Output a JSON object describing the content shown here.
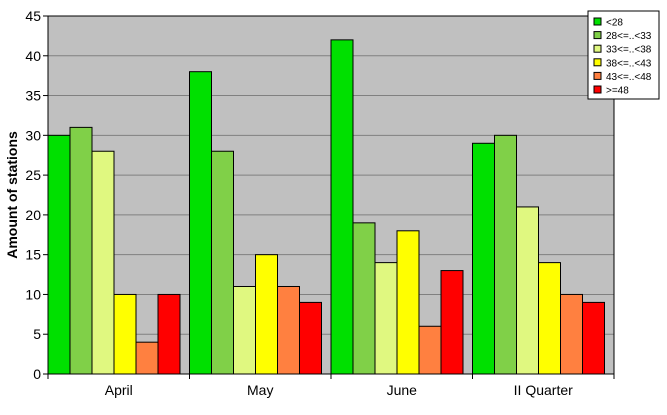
{
  "chart_data": {
    "type": "bar",
    "title": "",
    "xlabel": "",
    "ylabel": "Amount of stations",
    "ylim": [
      0,
      45
    ],
    "yticks": [
      0,
      5,
      10,
      15,
      20,
      25,
      30,
      35,
      40,
      45
    ],
    "grid": true,
    "legend_position": "top-right",
    "plot_background": "#c0c0c0",
    "categories": [
      "April",
      "May",
      "June",
      "II Quarter"
    ],
    "series": [
      {
        "name": "<28",
        "color": "#00e000",
        "values": [
          30,
          38,
          42,
          29
        ]
      },
      {
        "name": "28<=..<33",
        "color": "#80d048",
        "values": [
          31,
          28,
          19,
          30
        ]
      },
      {
        "name": "33<=..<38",
        "color": "#e0f880",
        "values": [
          28,
          11,
          14,
          21
        ]
      },
      {
        "name": "38<=..<43",
        "color": "#ffff00",
        "values": [
          10,
          15,
          18,
          14
        ]
      },
      {
        "name": "43<=..<48",
        "color": "#ff8040",
        "values": [
          4,
          11,
          6,
          10
        ]
      },
      {
        "name": ">=48",
        "color": "#ff0000",
        "values": [
          10,
          9,
          13,
          9
        ]
      }
    ]
  }
}
